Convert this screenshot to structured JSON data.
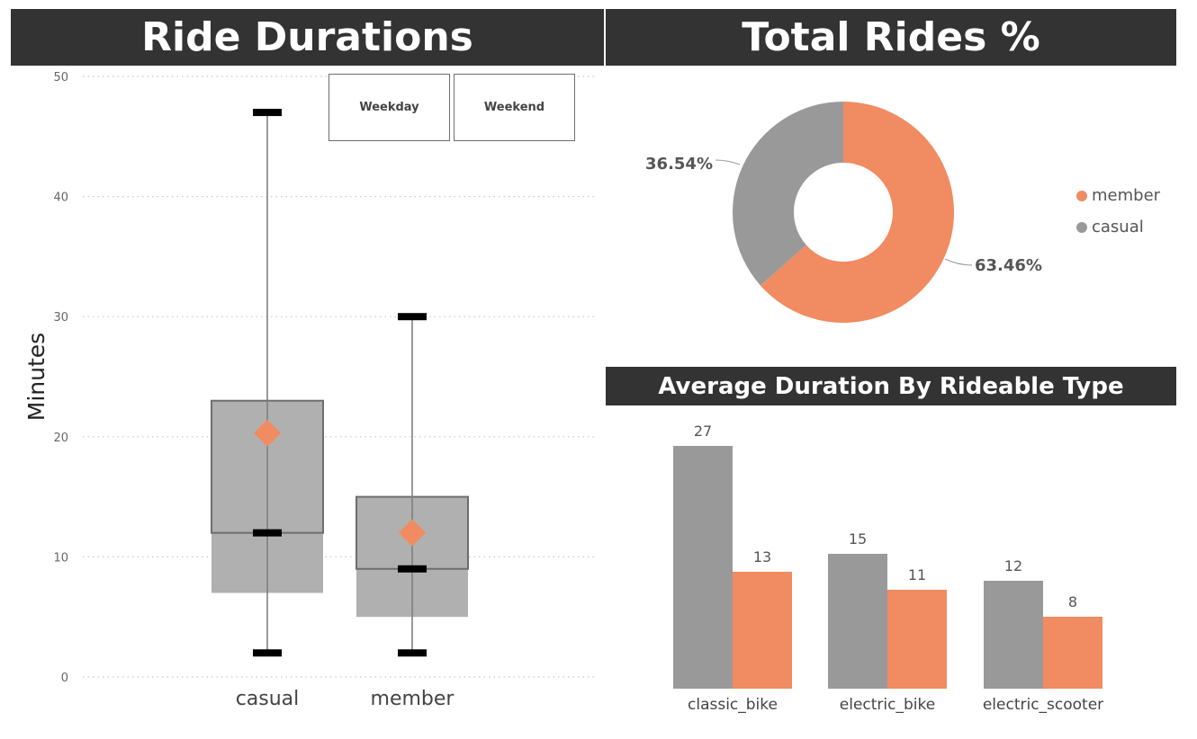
{
  "titles": {
    "ride_durations": "Ride Durations",
    "total_rides": "Total Rides %",
    "avg_duration": "Average Duration By Rideable Type"
  },
  "slicer": {
    "weekday": "Weekday",
    "weekend": "Weekend"
  },
  "colors": {
    "member": "#F08B62",
    "casual": "#999999",
    "box": "#B0B0B0",
    "title_bg": "#333333"
  },
  "chart_data": [
    {
      "type": "box",
      "title": "Ride Durations",
      "ylabel": "Minutes",
      "xlabel": "",
      "ylim": [
        0,
        50
      ],
      "yticks": [
        0,
        10,
        20,
        30,
        40,
        50
      ],
      "categories": [
        "casual",
        "member"
      ],
      "series": [
        {
          "name": "casual",
          "min": 2,
          "q1": 12,
          "median": 12,
          "q3": 23,
          "max": 47,
          "mean": 20.3,
          "lower_band": 7
        },
        {
          "name": "member",
          "min": 2,
          "q1": 9,
          "median": 9,
          "q3": 15,
          "max": 30,
          "mean": 12,
          "lower_band": 5
        }
      ]
    },
    {
      "type": "pie",
      "title": "Total Rides %",
      "legend_position": "right",
      "slices": [
        {
          "name": "member",
          "value": 63.46,
          "label": "63.46%"
        },
        {
          "name": "casual",
          "value": 36.54,
          "label": "36.54%"
        }
      ]
    },
    {
      "type": "bar",
      "title": "Average Duration By Rideable Type",
      "categories": [
        "classic_bike",
        "electric_bike",
        "electric_scooter"
      ],
      "series": [
        {
          "name": "casual",
          "values": [
            27,
            15,
            12
          ]
        },
        {
          "name": "member",
          "values": [
            13,
            11,
            8
          ]
        }
      ],
      "ylim": [
        0,
        27
      ]
    }
  ]
}
